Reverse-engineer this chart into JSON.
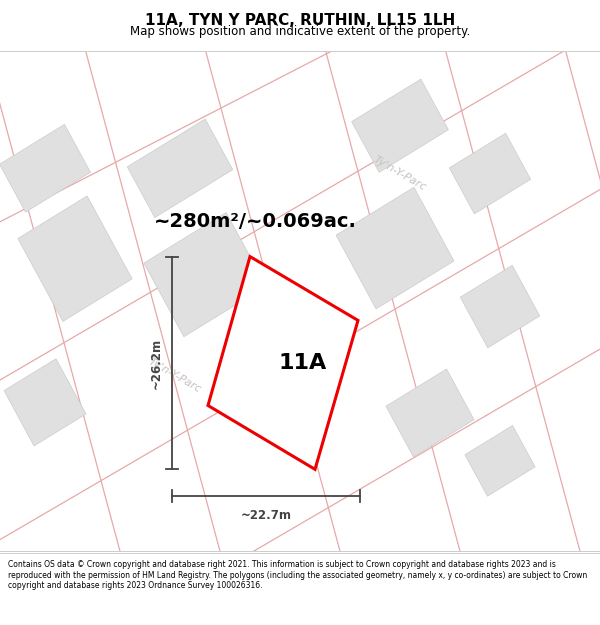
{
  "title": "11A, TYN Y PARC, RUTHIN, LL15 1LH",
  "subtitle": "Map shows position and indicative extent of the property.",
  "area_text": "~280m²/~0.069ac.",
  "label_11a": "11A",
  "dim_vertical": "~26.2m",
  "dim_horizontal": "~22.7m",
  "road_label_left": "Ty'n-Y-Parc",
  "road_label_right": "Ty'n-Y-Parc",
  "footer_text": "Contains OS data © Crown copyright and database right 2021. This information is subject to Crown copyright and database rights 2023 and is reproduced with the permission of HM Land Registry. The polygons (including the associated geometry, namely x, y co-ordinates) are subject to Crown copyright and database rights 2023 Ordnance Survey 100026316.",
  "pink": "#e8a8a8",
  "block_color": "#e0e0e0",
  "block_edge": "#cccccc",
  "prop_edge": "#ee0000",
  "dim_color": "#444444",
  "road_text_color": "#c8c0c0",
  "title_fontsize": 11,
  "subtitle_fontsize": 8.5,
  "area_fontsize": 14,
  "label_fontsize": 16,
  "dim_fontsize": 8.5,
  "footer_fontsize": 5.5
}
